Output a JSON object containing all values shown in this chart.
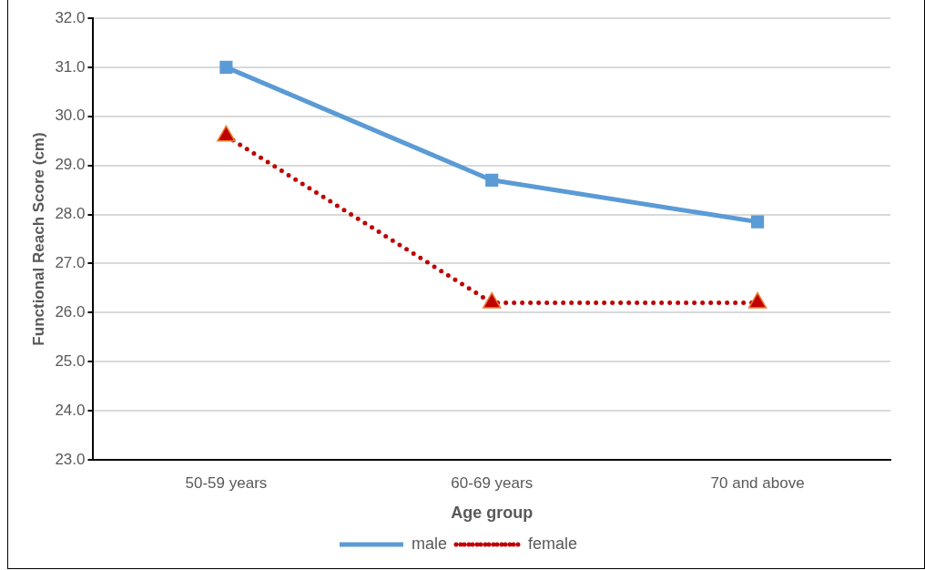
{
  "chart_data": {
    "type": "line",
    "xlabel": "Age group",
    "ylabel": "Functional Reach Score (cm)",
    "categories": [
      "50-59 years",
      "60-69 years",
      "70 and above"
    ],
    "series": [
      {
        "name": "male",
        "color": "#5b9bd5",
        "values": [
          31.0,
          28.7,
          27.85
        ],
        "marker": "square",
        "line_style": "solid"
      },
      {
        "name": "female",
        "color": "#c00000",
        "values": [
          29.6,
          26.2,
          26.2
        ],
        "marker": "triangle",
        "line_style": "dotted"
      }
    ],
    "ylim": [
      23,
      32
    ],
    "yticks": [
      {
        "value": 23,
        "label": "23.0"
      },
      {
        "value": 24,
        "label": "24.0"
      },
      {
        "value": 25,
        "label": "25.0"
      },
      {
        "value": 26,
        "label": "26.0"
      },
      {
        "value": 27,
        "label": "27.0"
      },
      {
        "value": 28,
        "label": "28.0"
      },
      {
        "value": 29,
        "label": "29.0"
      },
      {
        "value": 30,
        "label": "30.0"
      },
      {
        "value": 31,
        "label": "31.0"
      },
      {
        "value": 32,
        "label": "32.0"
      }
    ],
    "grid": "y",
    "legend": "bottom"
  }
}
